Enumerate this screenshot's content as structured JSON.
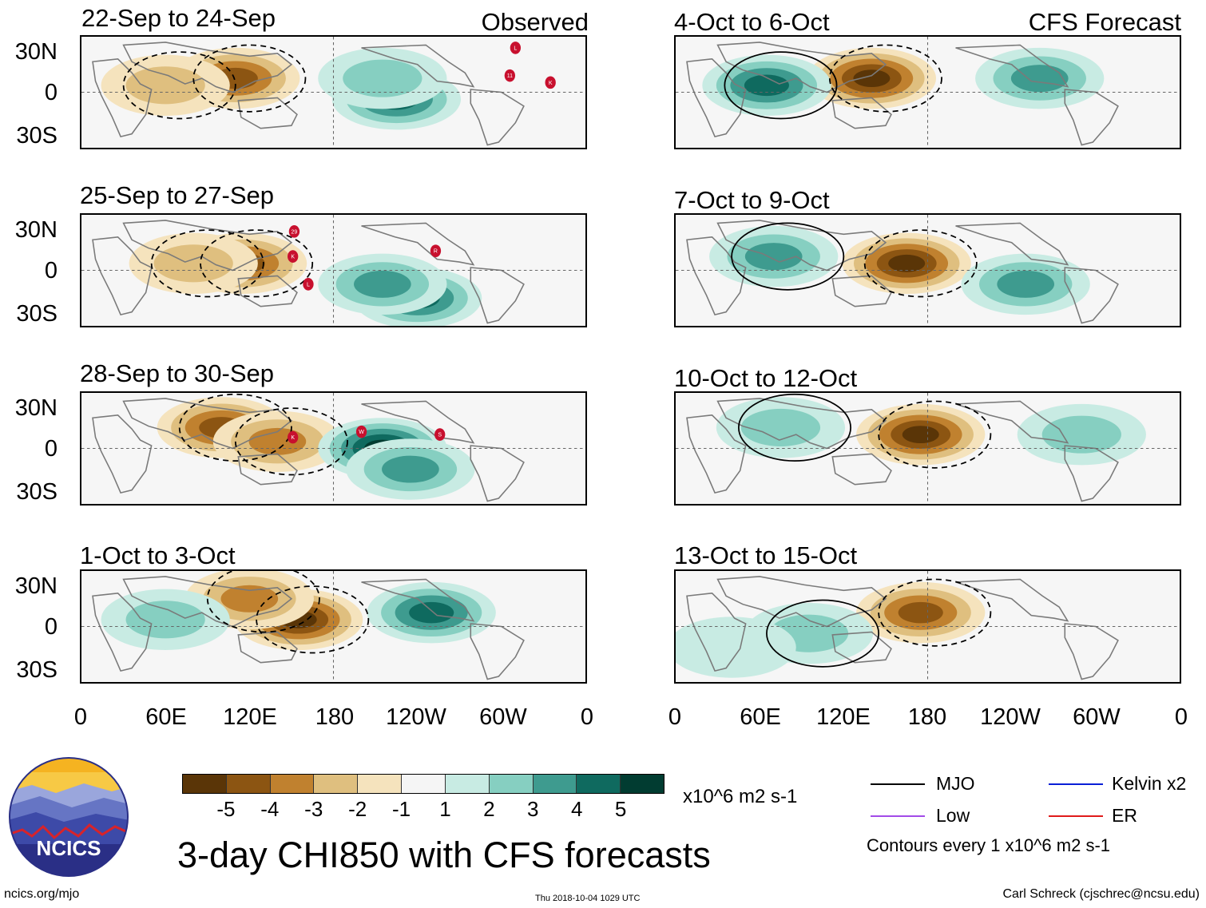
{
  "header": {
    "left_label": "Observed",
    "right_label": "CFS Forecast"
  },
  "panels": {
    "observed": [
      {
        "title": "22-Sep to 24-Sep",
        "storms": [
          "L",
          "11",
          "K"
        ]
      },
      {
        "title": "25-Sep to 27-Sep",
        "storms": [
          "29",
          "K",
          "L",
          "R"
        ]
      },
      {
        "title": "28-Sep to 30-Sep",
        "storms": [
          "K",
          "W",
          "S"
        ]
      },
      {
        "title": "1-Oct to 3-Oct",
        "storms": []
      }
    ],
    "forecast": [
      {
        "title": "4-Oct to 6-Oct"
      },
      {
        "title": "7-Oct to 9-Oct"
      },
      {
        "title": "10-Oct to 12-Oct"
      },
      {
        "title": "13-Oct to 15-Oct"
      }
    ]
  },
  "axes": {
    "lat_ticks": [
      "30N",
      "0",
      "30S"
    ],
    "lon_ticks": [
      "0",
      "60E",
      "120E",
      "180",
      "120W",
      "60W",
      "0"
    ]
  },
  "colorbar": {
    "ticks": [
      "-5",
      "-4",
      "-3",
      "-2",
      "-1",
      "1",
      "2",
      "3",
      "4",
      "5"
    ],
    "colors": [
      "#5a3507",
      "#8c5512",
      "#c0812f",
      "#dfbf7f",
      "#f5e3bd",
      "#f5f5f5",
      "#c8ebe3",
      "#86cfc1",
      "#3e9b8f",
      "#0f6a5f",
      "#013c31"
    ],
    "units": "x10^6 m2 s-1"
  },
  "legend": {
    "items": [
      {
        "label": "MJO",
        "color": "#000000"
      },
      {
        "label": "Kelvin x2",
        "color": "#0a1fd6"
      },
      {
        "label": "Low",
        "color": "#a24be8"
      },
      {
        "label": "ER",
        "color": "#e01b1b"
      }
    ],
    "contour_note": "Contours every 1 x10^6 m2 s-1"
  },
  "title": "3-day CHI850 with CFS forecasts",
  "logo_text": "NCICS",
  "footer": {
    "left": "ncics.org/mjo",
    "center": "Thu 2018-10-04 1029 UTC",
    "right": "Carl Schreck (cjschrec@ncsu.edu)"
  },
  "chart_data": {
    "type": "heatmap",
    "variable": "3-day CHI850 anomaly",
    "units": "x10^6 m2 s-1",
    "x_range": [
      "0",
      "0"
    ],
    "y_range": [
      "30S",
      "30N"
    ],
    "panels": [
      {
        "period": "22-Sep to 24-Sep",
        "source": "Observed",
        "features": [
          {
            "lon": 110,
            "lat": 10,
            "value": -4
          },
          {
            "lon": 60,
            "lat": 5,
            "value": -2
          },
          {
            "lon": 225,
            "lat": -5,
            "value": 4
          },
          {
            "lon": 215,
            "lat": 10,
            "value": 2
          }
        ]
      },
      {
        "period": "25-Sep to 27-Sep",
        "source": "Observed",
        "features": [
          {
            "lon": 115,
            "lat": 5,
            "value": -4
          },
          {
            "lon": 80,
            "lat": 5,
            "value": -2
          },
          {
            "lon": 240,
            "lat": -20,
            "value": 4
          },
          {
            "lon": 215,
            "lat": -10,
            "value": 3
          }
        ]
      },
      {
        "period": "28-Sep to 30-Sep",
        "source": "Observed",
        "features": [
          {
            "lon": 100,
            "lat": 15,
            "value": -4
          },
          {
            "lon": 140,
            "lat": 5,
            "value": -3
          },
          {
            "lon": 215,
            "lat": 0,
            "value": 5
          },
          {
            "lon": 235,
            "lat": -15,
            "value": 3
          }
        ]
      },
      {
        "period": "1-Oct to 3-Oct",
        "source": "Observed",
        "features": [
          {
            "lon": 155,
            "lat": 5,
            "value": -5
          },
          {
            "lon": 120,
            "lat": 20,
            "value": -3
          },
          {
            "lon": 250,
            "lat": 10,
            "value": 4
          },
          {
            "lon": 60,
            "lat": 5,
            "value": 2
          }
        ]
      },
      {
        "period": "4-Oct to 6-Oct",
        "source": "CFS Forecast",
        "features": [
          {
            "lon": 140,
            "lat": 10,
            "value": -5
          },
          {
            "lon": 65,
            "lat": 5,
            "value": 4
          },
          {
            "lon": 260,
            "lat": 10,
            "value": 3
          }
        ]
      },
      {
        "period": "7-Oct to 9-Oct",
        "source": "CFS Forecast",
        "features": [
          {
            "lon": 165,
            "lat": 5,
            "value": -5
          },
          {
            "lon": 70,
            "lat": 10,
            "value": 3
          },
          {
            "lon": 250,
            "lat": -10,
            "value": 3
          }
        ]
      },
      {
        "period": "10-Oct to 12-Oct",
        "source": "CFS Forecast",
        "features": [
          {
            "lon": 175,
            "lat": 10,
            "value": -5
          },
          {
            "lon": 75,
            "lat": 15,
            "value": 2
          },
          {
            "lon": 290,
            "lat": 10,
            "value": 2
          }
        ]
      },
      {
        "period": "13-Oct to 15-Oct",
        "source": "CFS Forecast",
        "features": [
          {
            "lon": 175,
            "lat": 10,
            "value": -4
          },
          {
            "lon": 95,
            "lat": -5,
            "value": 2
          },
          {
            "lon": 40,
            "lat": -15,
            "value": 1
          }
        ]
      }
    ]
  }
}
